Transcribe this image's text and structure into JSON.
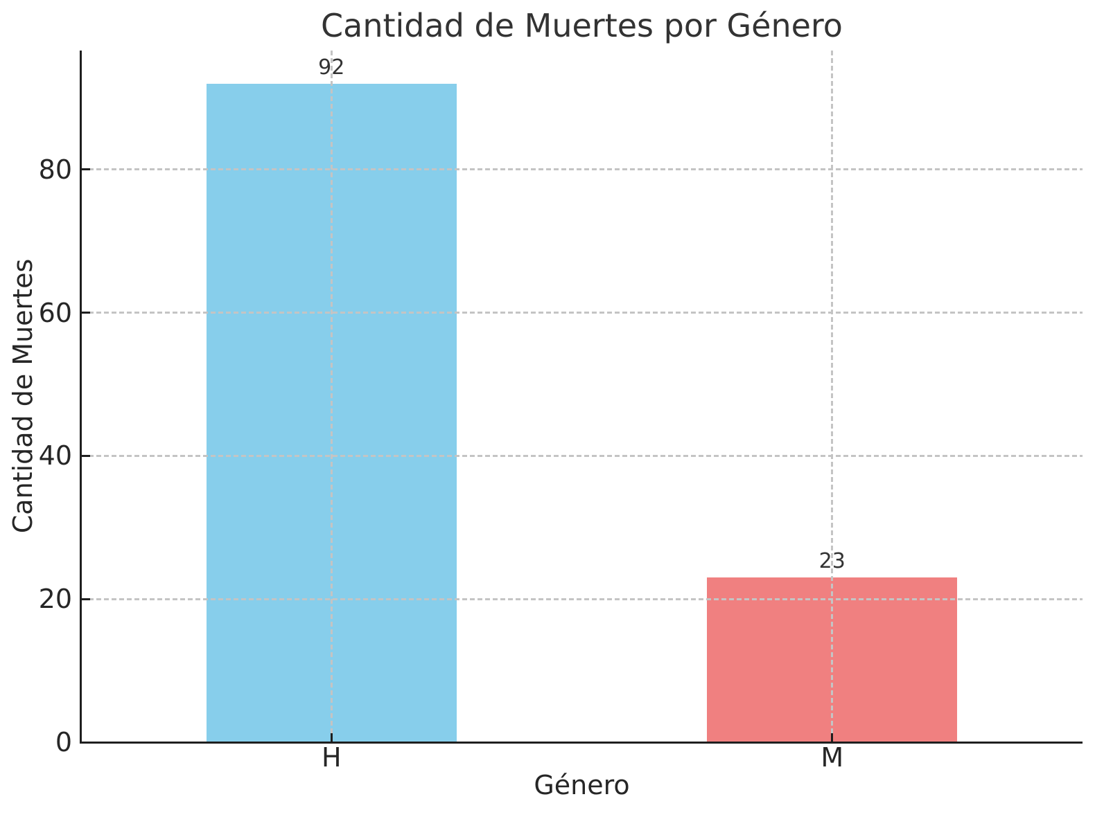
{
  "chart_data": {
    "type": "bar",
    "title": "Cantidad de Muertes por Género",
    "xlabel": "Género",
    "ylabel": "Cantidad de Muertes",
    "categories": [
      "H",
      "M"
    ],
    "values": [
      92,
      23
    ],
    "bar_labels": [
      "92",
      "23"
    ],
    "bar_colors": [
      "#87CEEB",
      "#F08080"
    ],
    "yticks": [
      0,
      20,
      40,
      60,
      80
    ],
    "ylim": [
      0,
      96.6
    ],
    "bar_width_fraction": 0.5,
    "grid": "dashed gridlines on both axes, drawn above bars",
    "legend": "none",
    "colors": {
      "text": "#262626",
      "title_text": "#333333",
      "spine": "#1f1f1f",
      "grid": "#c4c4c4",
      "background": "#ffffff"
    }
  }
}
